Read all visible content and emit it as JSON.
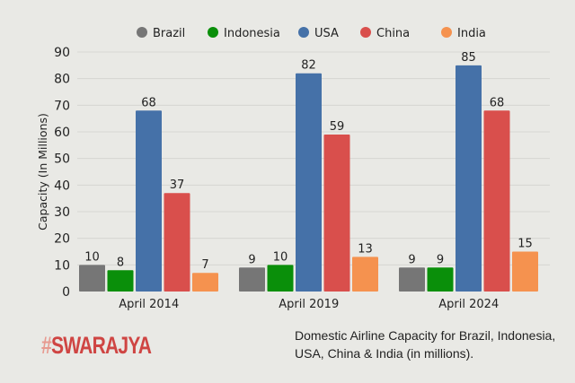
{
  "chart_data": {
    "type": "bar",
    "categories": [
      "April 2014",
      "April 2019",
      "April 2024"
    ],
    "series": [
      {
        "name": "Brazil",
        "color": "#767676",
        "values": [
          10,
          9,
          9
        ]
      },
      {
        "name": "Indonesia",
        "color": "#0a8f0a",
        "values": [
          8,
          10,
          9
        ]
      },
      {
        "name": "USA",
        "color": "#4571a8",
        "values": [
          68,
          82,
          85
        ]
      },
      {
        "name": "China",
        "color": "#d94f4c",
        "values": [
          37,
          59,
          68
        ]
      },
      {
        "name": "India",
        "color": "#f5924f",
        "values": [
          7,
          13,
          15
        ]
      }
    ],
    "ylabel": "Capacity (In Millions)",
    "xlabel": "",
    "ylim": [
      0,
      90
    ],
    "yticks": [
      0,
      10,
      20,
      30,
      40,
      50,
      60,
      70,
      80,
      90
    ],
    "grid": true,
    "legend_position": "top-center",
    "data_labels": true
  },
  "brand": {
    "hash": "#",
    "name": "SWARAJYA"
  },
  "caption": "Domestic Airline Capacity for Brazil, Indonesia, USA, China & India (in millions)."
}
